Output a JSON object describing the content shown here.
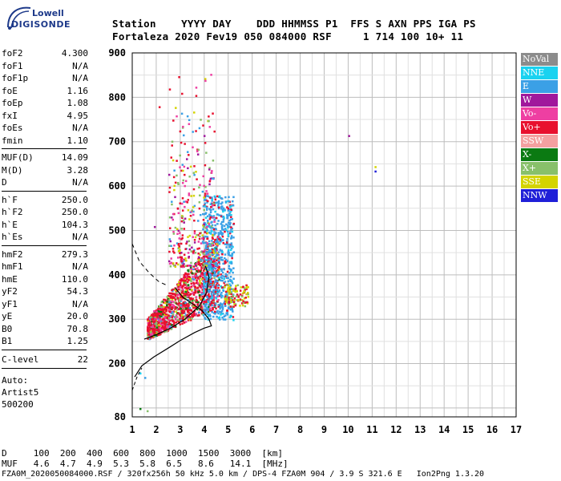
{
  "logo": {
    "line1": "Lowell",
    "line2": "DIGISONDE"
  },
  "header": {
    "row1": "Station    YYYY DAY    DDD HHMMSS P1  FFS S AXN PPS IGA PS",
    "row2": "Fortaleza 2020 Fev19 050 084000 RSF     1 714 100 10+ 11"
  },
  "params": {
    "group1": [
      {
        "k": "foF2",
        "v": "4.300"
      },
      {
        "k": "foF1",
        "v": "N/A"
      },
      {
        "k": "foF1p",
        "v": "N/A"
      },
      {
        "k": "foE",
        "v": "1.16"
      },
      {
        "k": "foEp",
        "v": "1.08"
      },
      {
        "k": "fxI",
        "v": "4.95"
      },
      {
        "k": "foEs",
        "v": "N/A"
      },
      {
        "k": "fmin",
        "v": "1.10"
      }
    ],
    "group2": [
      {
        "k": "MUF(D)",
        "v": "14.09"
      },
      {
        "k": "M(D)",
        "v": "3.28"
      },
      {
        "k": "D",
        "v": "N/A"
      }
    ],
    "group3": [
      {
        "k": "h`F",
        "v": "250.0"
      },
      {
        "k": "h`F2",
        "v": "250.0"
      },
      {
        "k": "h`E",
        "v": "104.3"
      },
      {
        "k": "h`Es",
        "v": "N/A"
      }
    ],
    "group4": [
      {
        "k": "hmF2",
        "v": "279.3"
      },
      {
        "k": "hmF1",
        "v": "N/A"
      },
      {
        "k": "hmE",
        "v": "110.0"
      },
      {
        "k": "yF2",
        "v": "54.3"
      },
      {
        "k": "yF1",
        "v": "N/A"
      },
      {
        "k": "yE",
        "v": "20.0"
      },
      {
        "k": "B0",
        "v": "70.8"
      },
      {
        "k": "B1",
        "v": "1.25"
      }
    ],
    "clevel": {
      "k": "C-level",
      "v": "22"
    },
    "auto": [
      "Auto:",
      "Artist5",
      "500200"
    ]
  },
  "legend": [
    {
      "label": "NoVal",
      "color": "#8c8c8c"
    },
    {
      "label": "NNE",
      "color": "#1ad2f0"
    },
    {
      "label": "E",
      "color": "#3ba0e6"
    },
    {
      "label": "W",
      "color": "#a0189c"
    },
    {
      "label": "Vo-",
      "color": "#ee3fa2"
    },
    {
      "label": "Vo+",
      "color": "#e8102e"
    },
    {
      "label": "SSW",
      "color": "#f4a0a0"
    },
    {
      "label": "X-",
      "color": "#0b7a12"
    },
    {
      "label": "X+",
      "color": "#88c06a"
    },
    {
      "label": "SSE",
      "color": "#d4d400"
    },
    {
      "label": "NNW",
      "color": "#2020d8"
    }
  ],
  "chart_data": {
    "type": "scatter",
    "xlabel": "",
    "ylabel": "",
    "xlim": [
      1,
      17
    ],
    "ylim": [
      80,
      900
    ],
    "xticks": [
      "1",
      "2",
      "3",
      "4",
      "5",
      "6",
      "7",
      "8",
      "9",
      "10",
      "11",
      "12",
      "13",
      "14",
      "15",
      "16",
      "17"
    ],
    "yticks": [
      "80",
      "200",
      "300",
      "400",
      "500",
      "600",
      "700",
      "800",
      "900"
    ],
    "grid": true
  },
  "footer": {
    "row1": "D     100  200  400  600  800  1000  1500  3000  [km]",
    "row2": "MUF   4.6  4.7  4.9  5.3  5.8  6.5   8.6   14.1  [MHz]",
    "row3": "FZA0M_2020050084000.RSF / 320fx256h 50 kHz 5.0 km / DPS-4 FZA0M 904 / 3.9 S 321.6 E   Ion2Png 1.3.20"
  }
}
